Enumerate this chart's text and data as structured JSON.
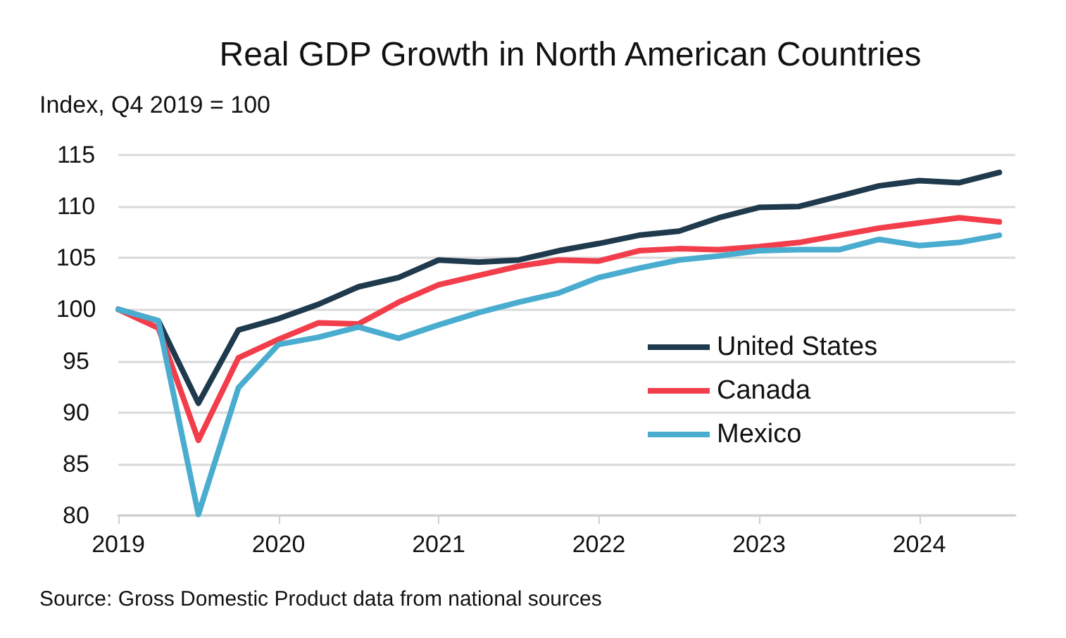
{
  "chart_data": {
    "type": "line",
    "title": "Real GDP Growth in North American Countries",
    "ylabel": "Index, Q4 2019 = 100",
    "annotations": [
      "Source: Gross Domestic Product data from national sources"
    ],
    "x": [
      2019,
      2019.25,
      2019.5,
      2019.75,
      2020,
      2020.25,
      2020.5,
      2020.75,
      2021,
      2021.25,
      2021.5,
      2021.75,
      2022,
      2022.25,
      2022.5,
      2022.75,
      2023,
      2023.25,
      2023.5,
      2023.75,
      2024,
      2024.25,
      2024.5
    ],
    "series": [
      {
        "name": "United States",
        "color": "#1f3a4d",
        "values": [
          100,
          98.9,
          90.9,
          98.0,
          99.1,
          100.5,
          102.2,
          103.1,
          104.8,
          104.6,
          104.8,
          105.7,
          106.4,
          107.2,
          107.6,
          108.9,
          109.9,
          110.0,
          111.0,
          112.0,
          112.5,
          112.3,
          113.3
        ]
      },
      {
        "name": "Canada",
        "color": "#f23d4a",
        "values": [
          100,
          98.2,
          87.3,
          95.3,
          97.1,
          98.7,
          98.6,
          100.7,
          102.4,
          103.3,
          104.2,
          104.8,
          104.7,
          105.7,
          105.9,
          105.8,
          106.1,
          106.5,
          107.2,
          107.9,
          108.4,
          108.9,
          108.5
        ]
      },
      {
        "name": "Mexico",
        "color": "#4aaccf",
        "values": [
          100,
          98.9,
          80.1,
          92.4,
          96.6,
          97.3,
          98.3,
          97.2,
          98.5,
          99.7,
          100.7,
          101.6,
          103.1,
          104.0,
          104.8,
          105.2,
          105.7,
          105.8,
          105.8,
          106.8,
          106.2,
          106.5,
          107.2
        ]
      }
    ],
    "xlim": [
      2019,
      2024.6
    ],
    "xticks": [
      2019,
      2020,
      2021,
      2022,
      2023,
      2024
    ],
    "ylim": [
      80,
      115
    ],
    "yticks": [
      80,
      85,
      90,
      95,
      100,
      105,
      110,
      115
    ],
    "grid": "y",
    "legend": "right",
    "marker": "none",
    "line_style": "solid"
  }
}
